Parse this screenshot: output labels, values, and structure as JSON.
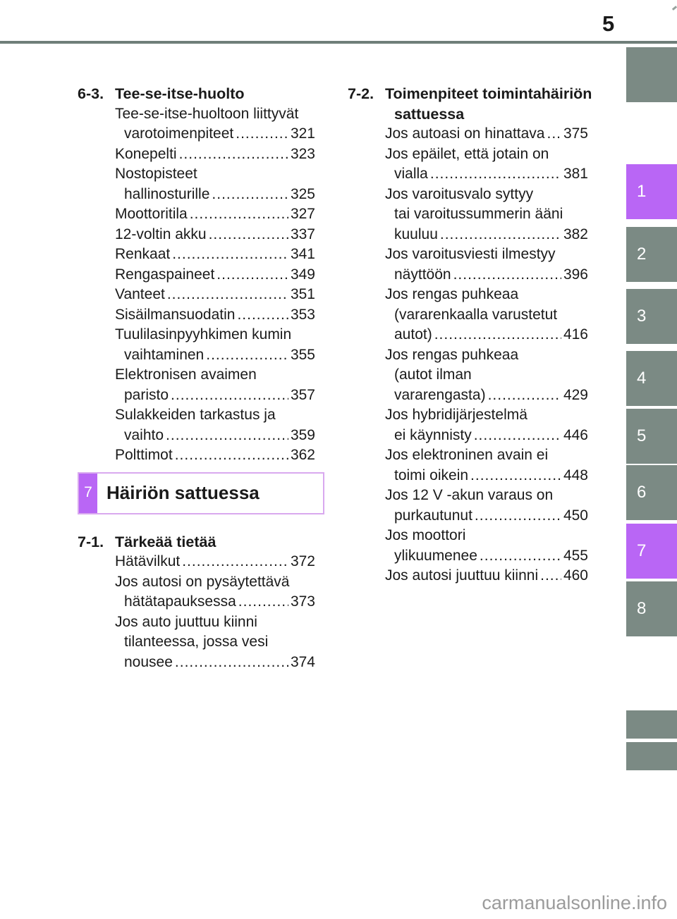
{
  "page": {
    "number": "5",
    "watermark": "carmanualsonline.info"
  },
  "colors": {
    "text": "#1a1a1a",
    "tab_gray": "#7b8a84",
    "tab_purple": "#b966f5",
    "rule": "#6f7e79",
    "banner_border": "#d9a9ef",
    "watermark": "#9b9b9b"
  },
  "sidebar": {
    "tabs": [
      {
        "num": "1",
        "active": true
      },
      {
        "num": "2",
        "active": false
      },
      {
        "num": "3",
        "active": false
      },
      {
        "num": "4",
        "active": false
      },
      {
        "num": "5",
        "active": false
      },
      {
        "num": "6",
        "active": false
      },
      {
        "num": "7",
        "active": true
      },
      {
        "num": "8",
        "active": false
      }
    ]
  },
  "left_column": {
    "blocks": [
      {
        "type": "section",
        "num": "6-3.",
        "title_lines": [
          "Tee-se-itse-huolto"
        ],
        "entries": [
          {
            "lines": [
              "Tee-se-itse-huoltoon liittyvät"
            ],
            "leader": "varotoimenpiteet",
            "page": "321"
          },
          {
            "lines": [],
            "leader": "Konepelti",
            "page": "323"
          },
          {
            "lines": [
              "Nostopisteet"
            ],
            "leader": "hallinosturille",
            "page": "325"
          },
          {
            "lines": [],
            "leader": "Moottoritila",
            "page": "327"
          },
          {
            "lines": [],
            "leader": "12-voltin akku",
            "page": "337"
          },
          {
            "lines": [],
            "leader": "Renkaat",
            "page": "341"
          },
          {
            "lines": [],
            "leader": "Rengaspaineet",
            "page": "349"
          },
          {
            "lines": [],
            "leader": "Vanteet",
            "page": "351"
          },
          {
            "lines": [],
            "leader": "Sisäilmansuodatin",
            "page": "353"
          },
          {
            "lines": [
              "Tuulilasinpyyhkimen kumin"
            ],
            "leader": "vaihtaminen",
            "page": "355"
          },
          {
            "lines": [
              "Elektronisen avaimen"
            ],
            "leader": "paristo",
            "page": "357"
          },
          {
            "lines": [
              "Sulakkeiden tarkastus ja"
            ],
            "leader": "vaihto",
            "page": "359"
          },
          {
            "lines": [],
            "leader": "Polttimot",
            "page": "362"
          }
        ]
      },
      {
        "type": "banner",
        "num": "7",
        "title": "Häiriön sattuessa"
      },
      {
        "type": "section",
        "num": "7-1.",
        "title_lines": [
          "Tärkeää tietää"
        ],
        "entries": [
          {
            "lines": [],
            "leader": "Hätävilkut",
            "page": "372"
          },
          {
            "lines": [
              "Jos autosi on pysäytettävä"
            ],
            "leader": "hätätapauksessa",
            "page": "373"
          },
          {
            "lines": [
              "Jos auto juuttuu kiinni",
              "tilanteessa, jossa vesi"
            ],
            "leader": "nousee",
            "page": "374"
          }
        ]
      }
    ]
  },
  "right_column": {
    "blocks": [
      {
        "type": "section",
        "num": "7-2.",
        "title_lines": [
          "Toimenpiteet toimintahäiriön",
          "sattuessa"
        ],
        "entries": [
          {
            "lines": [],
            "leader": "Jos autoasi on hinattava",
            "page": "375"
          },
          {
            "lines": [
              "Jos epäilet, että jotain on"
            ],
            "leader": "vialla",
            "page": "381"
          },
          {
            "lines": [
              "Jos varoitusvalo syttyy",
              "tai varoitussummerin ääni"
            ],
            "leader": "kuuluu",
            "page": "382"
          },
          {
            "lines": [
              "Jos varoitusviesti ilmestyy"
            ],
            "leader": "näyttöön",
            "page": "396"
          },
          {
            "lines": [
              "Jos rengas puhkeaa",
              "(vararenkaalla varustetut"
            ],
            "leader": "autot)",
            "page": "416"
          },
          {
            "lines": [
              "Jos rengas puhkeaa",
              "(autot ilman"
            ],
            "leader": "vararengasta)",
            "page": "429"
          },
          {
            "lines": [
              "Jos hybridijärjestelmä"
            ],
            "leader": "ei käynnisty",
            "page": "446"
          },
          {
            "lines": [
              "Jos elektroninen avain ei"
            ],
            "leader": "toimi oikein",
            "page": "448"
          },
          {
            "lines": [
              "Jos 12 V -akun varaus on"
            ],
            "leader": "purkautunut",
            "page": "450"
          },
          {
            "lines": [
              "Jos moottori"
            ],
            "leader": "ylikuumenee",
            "page": "455"
          },
          {
            "lines": [],
            "leader": "Jos autosi juuttuu kiinni",
            "page": "460"
          }
        ]
      }
    ]
  }
}
